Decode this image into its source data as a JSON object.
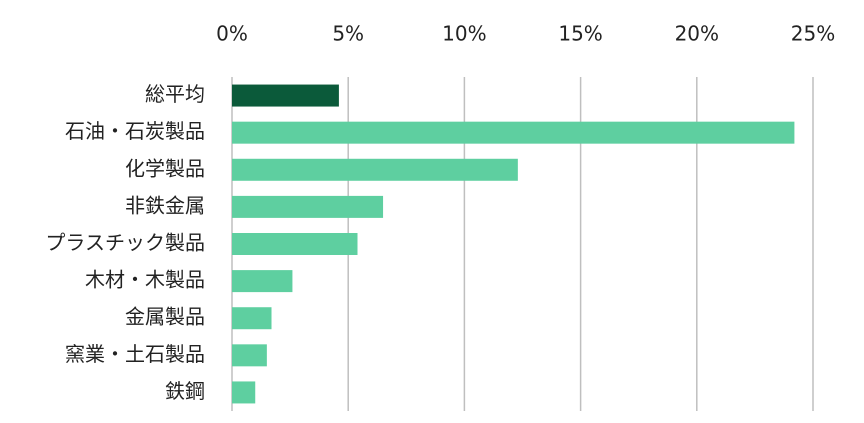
{
  "chart_data": {
    "type": "barh",
    "categories": [
      "総平均",
      "石油・石炭製品",
      "化学製品",
      "非鉄金属",
      "プラスチック製品",
      "木材・木製品",
      "金属製品",
      "窯業・土石製品",
      "鉄鋼"
    ],
    "values": [
      4.6,
      24.2,
      12.3,
      6.5,
      5.4,
      2.6,
      1.7,
      1.5,
      1.0
    ],
    "colors": [
      "#0b5a3a",
      "#5ecfa0",
      "#5ecfa0",
      "#5ecfa0",
      "#5ecfa0",
      "#5ecfa0",
      "#5ecfa0",
      "#5ecfa0",
      "#5ecfa0"
    ],
    "xlim": [
      0,
      25
    ],
    "xticks": [
      {
        "value": 0,
        "label": "0%"
      },
      {
        "value": 5,
        "label": "5%"
      },
      {
        "value": 10,
        "label": "10%"
      },
      {
        "value": 15,
        "label": "15%"
      },
      {
        "value": 20,
        "label": "20%"
      },
      {
        "value": 25,
        "label": "25%"
      }
    ],
    "grid": true
  }
}
